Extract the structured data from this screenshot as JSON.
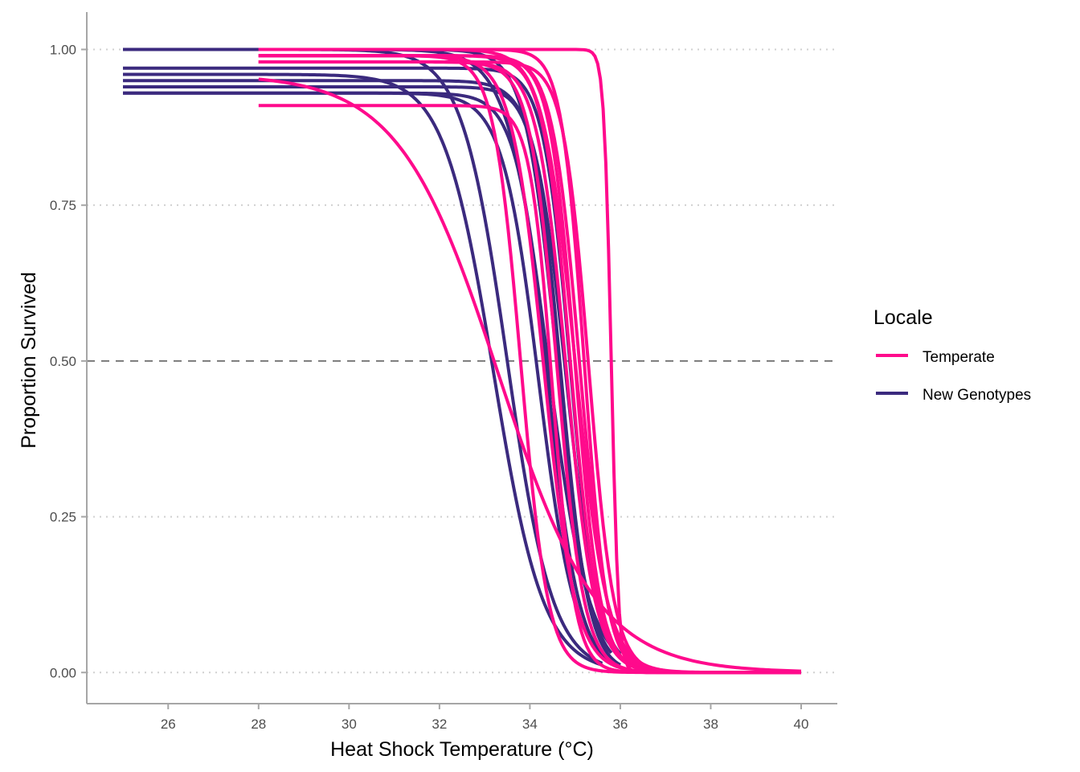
{
  "chart_data": {
    "type": "line",
    "title": "",
    "xlabel": "Heat Shock Temperature (°C)",
    "ylabel": "Proportion Survived",
    "xlim": [
      24.2,
      40.8
    ],
    "ylim": [
      -0.05,
      1.06
    ],
    "x_ticks": [
      "26",
      "28",
      "30",
      "32",
      "34",
      "36",
      "38",
      "40"
    ],
    "y_ticks": [
      "0.00",
      "0.25",
      "0.50",
      "0.75",
      "1.00"
    ],
    "reference_line_y": 0.5,
    "grid": "horizontal dotted",
    "legend": {
      "title": "Locale",
      "position": "right",
      "entries": [
        {
          "label": "Temperate",
          "color": "#ff0a8c"
        },
        {
          "label": "New Genotypes",
          "color": "#3b2a7e"
        }
      ]
    },
    "series": [
      {
        "group": "New Genotypes",
        "x_range": [
          25,
          35.8
        ],
        "top": 1.0,
        "t50": 34.6,
        "slope": 0.35
      },
      {
        "group": "New Genotypes",
        "x_range": [
          25,
          36.0
        ],
        "top": 1.0,
        "t50": 34.4,
        "slope": 0.45
      },
      {
        "group": "New Genotypes",
        "x_range": [
          25,
          35.6
        ],
        "top": 1.0,
        "t50": 33.5,
        "slope": 0.5
      },
      {
        "group": "New Genotypes",
        "x_range": [
          25,
          35.6
        ],
        "top": 0.96,
        "t50": 33.2,
        "slope": 0.55
      },
      {
        "group": "New Genotypes",
        "x_range": [
          25,
          36.0
        ],
        "top": 0.95,
        "t50": 34.8,
        "slope": 0.35
      },
      {
        "group": "New Genotypes",
        "x_range": [
          25,
          36.0
        ],
        "top": 0.94,
        "t50": 34.7,
        "slope": 0.3
      },
      {
        "group": "New Genotypes",
        "x_range": [
          25,
          35.5
        ],
        "top": 0.93,
        "t50": 34.2,
        "slope": 0.4
      },
      {
        "group": "New Genotypes",
        "x_range": [
          25,
          36.0
        ],
        "top": 0.93,
        "t50": 34.4,
        "slope": 0.35
      },
      {
        "group": "New Genotypes",
        "x_range": [
          25,
          36.0
        ],
        "top": 0.97,
        "t50": 34.9,
        "slope": 0.3
      },
      {
        "group": "Temperate",
        "x_range": [
          28,
          40
        ],
        "top": 1.0,
        "t50": 35.8,
        "slope": 0.08
      },
      {
        "group": "Temperate",
        "x_range": [
          28,
          40
        ],
        "top": 1.0,
        "t50": 35.2,
        "slope": 0.25
      },
      {
        "group": "Temperate",
        "x_range": [
          28,
          40
        ],
        "top": 0.99,
        "t50": 35.0,
        "slope": 0.28
      },
      {
        "group": "Temperate",
        "x_range": [
          28,
          40
        ],
        "top": 0.99,
        "t50": 34.9,
        "slope": 0.3
      },
      {
        "group": "Temperate",
        "x_range": [
          28,
          40
        ],
        "top": 0.99,
        "t50": 35.1,
        "slope": 0.3
      },
      {
        "group": "Temperate",
        "x_range": [
          28,
          40
        ],
        "top": 0.98,
        "t50": 34.8,
        "slope": 0.32
      },
      {
        "group": "Temperate",
        "x_range": [
          28,
          40
        ],
        "top": 0.98,
        "t50": 35.3,
        "slope": 0.28
      },
      {
        "group": "Temperate",
        "x_range": [
          28,
          40
        ],
        "top": 0.98,
        "t50": 34.6,
        "slope": 0.3
      },
      {
        "group": "Temperate",
        "x_range": [
          28,
          40
        ],
        "top": 1.0,
        "t50": 35.0,
        "slope": 0.35
      },
      {
        "group": "Temperate",
        "x_range": [
          28,
          40
        ],
        "top": 0.99,
        "t50": 34.3,
        "slope": 0.35
      },
      {
        "group": "Temperate",
        "x_range": [
          28,
          40
        ],
        "top": 0.99,
        "t50": 33.8,
        "slope": 0.3
      },
      {
        "group": "Temperate",
        "x_range": [
          28,
          40
        ],
        "top": 0.91,
        "t50": 34.5,
        "slope": 0.25
      },
      {
        "group": "Temperate",
        "x_range": [
          28,
          40
        ],
        "top": 0.96,
        "t50": 33.3,
        "slope": 1.1
      }
    ]
  }
}
